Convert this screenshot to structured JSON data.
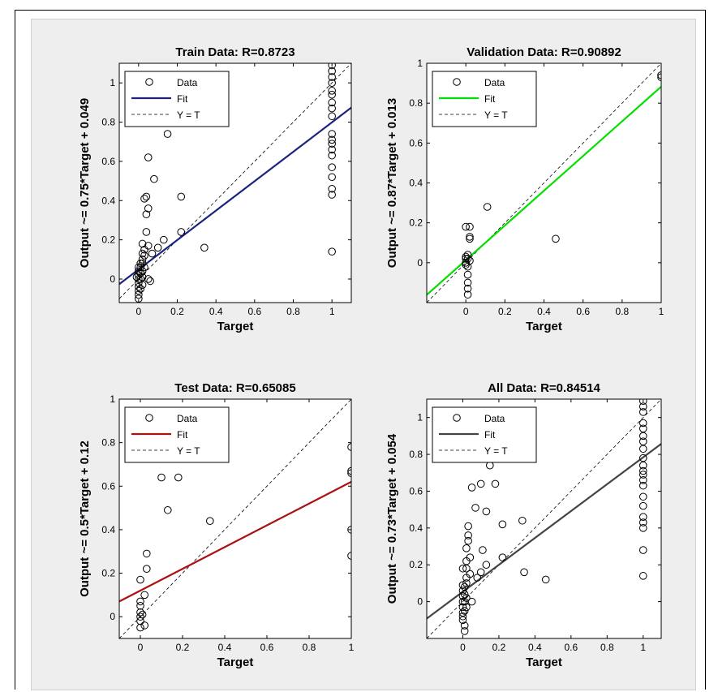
{
  "chart_data": [
    {
      "type": "scatter",
      "title": "Train Data: R=0.8723",
      "xlabel": "Target",
      "ylabel": "Output ~= 0.75*Target + 0.049",
      "xlim": [
        -0.1,
        1.1
      ],
      "ylim": [
        -0.12,
        1.1
      ],
      "xticks": [
        0,
        0.2,
        0.4,
        0.6,
        0.8,
        1
      ],
      "yticks": [
        0,
        0.2,
        0.4,
        0.6,
        0.8,
        1
      ],
      "fit": {
        "slope": 0.75,
        "intercept": 0.049,
        "color": "#1a237e"
      },
      "legend": {
        "placement": "top-left",
        "entries": [
          "Data",
          "Fit",
          "Y = T"
        ]
      },
      "points": [
        [
          0,
          -0.1
        ],
        [
          0,
          -0.06
        ],
        [
          0,
          -0.04
        ],
        [
          0,
          -0.02
        ],
        [
          0,
          0
        ],
        [
          0,
          0.02
        ],
        [
          0,
          0.04
        ],
        [
          0,
          0.06
        ],
        [
          0,
          -0.08
        ],
        [
          0.01,
          -0.05
        ],
        [
          0.01,
          0
        ],
        [
          0.01,
          0.03
        ],
        [
          0.01,
          0.06
        ],
        [
          0.01,
          0.08
        ],
        [
          0.02,
          -0.03
        ],
        [
          0.02,
          0.01
        ],
        [
          0.02,
          0.04
        ],
        [
          0.02,
          0.1
        ],
        [
          0.02,
          0.13
        ],
        [
          0.02,
          0.18
        ],
        [
          0.03,
          0.06
        ],
        [
          0.03,
          0.15
        ],
        [
          0.03,
          0.12
        ],
        [
          0.03,
          0.41
        ],
        [
          0.04,
          0.42
        ],
        [
          0.04,
          0.33
        ],
        [
          0.04,
          0.24
        ],
        [
          0.05,
          0.36
        ],
        [
          0.05,
          0.17
        ],
        [
          0.05,
          0.0
        ],
        [
          0.05,
          0.62
        ],
        [
          0.07,
          0.13
        ],
        [
          0.08,
          0.51
        ],
        [
          0.1,
          0.16
        ],
        [
          0.13,
          0.2
        ],
        [
          0.15,
          0.74
        ],
        [
          0.22,
          0.42
        ],
        [
          0.22,
          0.24
        ],
        [
          0.34,
          0.16
        ],
        [
          0.02,
          0.08
        ],
        [
          -0.01,
          0.01
        ],
        [
          0.06,
          -0.01
        ],
        [
          1,
          1.09
        ],
        [
          1,
          1.06
        ],
        [
          1,
          1.03
        ],
        [
          1,
          1.0
        ],
        [
          1,
          0.96
        ],
        [
          1,
          0.94
        ],
        [
          1,
          0.9
        ],
        [
          1,
          0.87
        ],
        [
          1,
          0.83
        ],
        [
          1,
          0.74
        ],
        [
          1,
          0.71
        ],
        [
          1,
          0.69
        ],
        [
          1,
          0.66
        ],
        [
          1,
          0.63
        ],
        [
          1,
          0.57
        ],
        [
          1,
          0.52
        ],
        [
          1,
          0.46
        ],
        [
          1,
          0.43
        ],
        [
          1,
          0.14
        ]
      ]
    },
    {
      "type": "scatter",
      "title": "Validation Data: R=0.90892",
      "xlabel": "Target",
      "ylabel": "Output ~= 0.87*Target + 0.013",
      "xlim": [
        -0.2,
        1.0
      ],
      "ylim": [
        -0.2,
        1.0
      ],
      "xticks": [
        0,
        0.2,
        0.4,
        0.6,
        0.8,
        1
      ],
      "yticks": [
        0,
        0.2,
        0.4,
        0.6,
        0.8,
        1
      ],
      "fit": {
        "slope": 0.87,
        "intercept": 0.013,
        "color": "#00e000"
      },
      "legend": {
        "placement": "top-left",
        "entries": [
          "Data",
          "Fit",
          "Y = T"
        ]
      },
      "points": [
        [
          0,
          0.18
        ],
        [
          0,
          0.03
        ],
        [
          0,
          0.02
        ],
        [
          0,
          0.0
        ],
        [
          0,
          -0.01
        ],
        [
          0.01,
          0.04
        ],
        [
          0.01,
          0.02
        ],
        [
          0.01,
          -0.02
        ],
        [
          0.01,
          -0.06
        ],
        [
          0.01,
          -0.1
        ],
        [
          0.01,
          -0.13
        ],
        [
          0.01,
          -0.16
        ],
        [
          0.02,
          0.18
        ],
        [
          0.02,
          0.13
        ],
        [
          0.02,
          0.12
        ],
        [
          0.02,
          0.01
        ],
        [
          0.11,
          0.28
        ],
        [
          0.46,
          0.12
        ],
        [
          1,
          0.94
        ],
        [
          1,
          0.93
        ]
      ]
    },
    {
      "type": "scatter",
      "title": "Test Data: R=0.65085",
      "xlabel": "Target",
      "ylabel": "Output ~= 0.5*Target + 0.12",
      "xlim": [
        -0.1,
        1.0
      ],
      "ylim": [
        -0.1,
        1.0
      ],
      "xticks": [
        0,
        0.2,
        0.4,
        0.6,
        0.8,
        1
      ],
      "yticks": [
        0,
        0.2,
        0.4,
        0.6,
        0.8,
        1
      ],
      "fit": {
        "slope": 0.5,
        "intercept": 0.12,
        "color": "#aa1111"
      },
      "legend": {
        "placement": "top-left",
        "entries": [
          "Data",
          "Fit",
          "Y = T"
        ]
      },
      "points": [
        [
          0,
          0.17
        ],
        [
          0,
          0.07
        ],
        [
          0,
          0.05
        ],
        [
          0,
          0.02
        ],
        [
          0,
          0.0
        ],
        [
          0,
          -0.02
        ],
        [
          0,
          -0.05
        ],
        [
          0.01,
          0.01
        ],
        [
          0.02,
          -0.04
        ],
        [
          0.02,
          0.1
        ],
        [
          0.03,
          0.29
        ],
        [
          0.03,
          0.22
        ],
        [
          0.1,
          0.64
        ],
        [
          0.13,
          0.49
        ],
        [
          0.18,
          0.64
        ],
        [
          0.33,
          0.44
        ],
        [
          1,
          0.78
        ],
        [
          1,
          0.67
        ],
        [
          1,
          0.66
        ],
        [
          1,
          0.4
        ],
        [
          1,
          0.28
        ]
      ]
    },
    {
      "type": "scatter",
      "title": "All Data: R=0.84514",
      "xlabel": "Target",
      "ylabel": "Output ~= 0.73*Target + 0.054",
      "xlim": [
        -0.2,
        1.1
      ],
      "ylim": [
        -0.2,
        1.1
      ],
      "xticks": [
        0,
        0.2,
        0.4,
        0.6,
        0.8,
        1
      ],
      "yticks": [
        0,
        0.2,
        0.4,
        0.6,
        0.8,
        1
      ],
      "fit": {
        "slope": 0.73,
        "intercept": 0.054,
        "color": "#444444"
      },
      "legend": {
        "placement": "top-left",
        "entries": [
          "Data",
          "Fit",
          "Y = T"
        ]
      },
      "points": [
        [
          0,
          -0.1
        ],
        [
          0,
          -0.06
        ],
        [
          0,
          -0.03
        ],
        [
          0,
          0
        ],
        [
          0,
          0.03
        ],
        [
          0,
          0.06
        ],
        [
          0,
          0.09
        ],
        [
          0,
          0.18
        ],
        [
          0,
          -0.08
        ],
        [
          0.01,
          -0.05
        ],
        [
          0.01,
          0
        ],
        [
          0.01,
          0.04
        ],
        [
          0.01,
          0.08
        ],
        [
          0.01,
          -0.16
        ],
        [
          0.01,
          -0.13
        ],
        [
          0.02,
          0.02
        ],
        [
          0.02,
          0.1
        ],
        [
          0.02,
          0.13
        ],
        [
          0.02,
          0.18
        ],
        [
          0.02,
          -0.03
        ],
        [
          0.02,
          0.29
        ],
        [
          0.02,
          0.22
        ],
        [
          0.03,
          0.41
        ],
        [
          0.03,
          0.36
        ],
        [
          0.03,
          0.33
        ],
        [
          0.04,
          0.24
        ],
        [
          0.04,
          0.15
        ],
        [
          0.05,
          0.62
        ],
        [
          0.05,
          0.0
        ],
        [
          0.07,
          0.51
        ],
        [
          0.08,
          0.13
        ],
        [
          0.1,
          0.64
        ],
        [
          0.1,
          0.16
        ],
        [
          0.11,
          0.28
        ],
        [
          0.13,
          0.49
        ],
        [
          0.15,
          0.74
        ],
        [
          0.13,
          0.2
        ],
        [
          0.18,
          0.64
        ],
        [
          0.22,
          0.42
        ],
        [
          0.22,
          0.24
        ],
        [
          0.33,
          0.44
        ],
        [
          0.34,
          0.16
        ],
        [
          0.46,
          0.12
        ],
        [
          1,
          1.09
        ],
        [
          1,
          1.06
        ],
        [
          1,
          1.03
        ],
        [
          1,
          0.97
        ],
        [
          1,
          0.94
        ],
        [
          1,
          0.9
        ],
        [
          1,
          0.87
        ],
        [
          1,
          0.83
        ],
        [
          1,
          0.78
        ],
        [
          1,
          0.74
        ],
        [
          1,
          0.71
        ],
        [
          1,
          0.69
        ],
        [
          1,
          0.66
        ],
        [
          1,
          0.63
        ],
        [
          1,
          0.57
        ],
        [
          1,
          0.52
        ],
        [
          1,
          0.46
        ],
        [
          1,
          0.43
        ],
        [
          1,
          0.4
        ],
        [
          1,
          0.28
        ],
        [
          1,
          0.14
        ]
      ]
    }
  ]
}
